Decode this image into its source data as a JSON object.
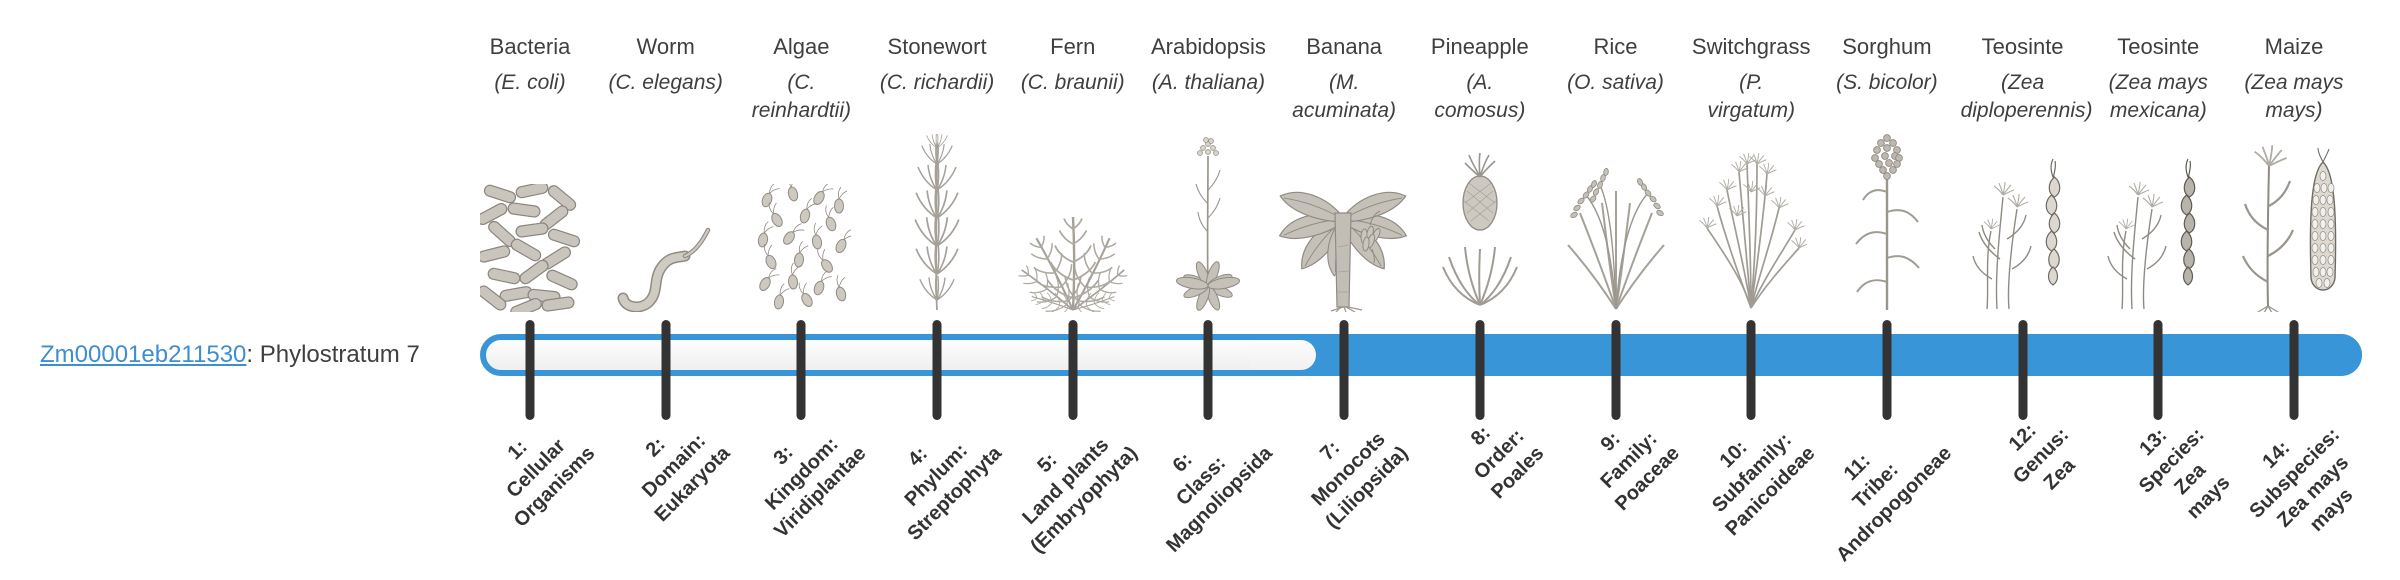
{
  "page": {
    "background": "#ffffff"
  },
  "gene": {
    "id": "Zm00001eb211530",
    "suffix": ": Phylostratum 7",
    "link_color": "#3e8ed0"
  },
  "bar": {
    "phylostratum": 7,
    "filled_from_stratum": 7,
    "total_strata": 14,
    "fill_color": "#3795d8",
    "outline_color": "#3795d8",
    "track_color": "#f7f7f7",
    "tick_color": "#333333"
  },
  "strata": [
    {
      "number": 1,
      "organism": "Bacteria",
      "scientific_name": "(E. coli)",
      "icon": "bacteria-icon",
      "stratum_label": "1:\nCellular\nOrganisms",
      "filled": false
    },
    {
      "number": 2,
      "organism": "Worm",
      "scientific_name": "(C. elegans)",
      "icon": "worm-icon",
      "stratum_label": "2:\nDomain:\nEukaryota",
      "filled": false
    },
    {
      "number": 3,
      "organism": "Algae",
      "scientific_name": "(C.\nreinhardtii)",
      "icon": "algae-icon",
      "stratum_label": "3:\nKingdom:\nViridiplantae",
      "filled": false
    },
    {
      "number": 4,
      "organism": "Stonewort",
      "scientific_name": "(C. richardii)",
      "icon": "stonewort-icon",
      "stratum_label": "4:\nPhylum:\nStreptophyta",
      "filled": false
    },
    {
      "number": 5,
      "organism": "Fern",
      "scientific_name": "(C. braunii)",
      "icon": "fern-icon",
      "stratum_label": "5:\nLand plants\n(Embryophyta)",
      "filled": false
    },
    {
      "number": 6,
      "organism": "Arabidopsis",
      "scientific_name": "(A. thaliana)",
      "icon": "arabidopsis-icon",
      "stratum_label": "6:\nClass:\nMagnoliopsida",
      "filled": false
    },
    {
      "number": 7,
      "organism": "Banana",
      "scientific_name": "(M.\nacuminata)",
      "icon": "banana-icon",
      "stratum_label": "7:\nMonocots\n(Liliopsida)",
      "filled": true
    },
    {
      "number": 8,
      "organism": "Pineapple",
      "scientific_name": "(A.\ncomosus)",
      "icon": "pineapple-icon",
      "stratum_label": "8:\nOrder:\nPoales",
      "filled": true
    },
    {
      "number": 9,
      "organism": "Rice",
      "scientific_name": "(O. sativa)",
      "icon": "rice-icon",
      "stratum_label": "9:\nFamily:\nPoaceae",
      "filled": true
    },
    {
      "number": 10,
      "organism": "Switchgrass",
      "scientific_name": "(P.\nvirgatum)",
      "icon": "switchgrass-icon",
      "stratum_label": "10:\nSubfamily:\nPanicoideae",
      "filled": true
    },
    {
      "number": 11,
      "organism": "Sorghum",
      "scientific_name": "(S. bicolor)",
      "icon": "sorghum-icon",
      "stratum_label": "11:\nTribe:\nAndropogoneae",
      "filled": true
    },
    {
      "number": 12,
      "organism": "Teosinte",
      "scientific_name": "(Zea\ndiploperennis)",
      "icon": "teosinte-icon",
      "stratum_label": "12:\nGenus:\nZea",
      "filled": true
    },
    {
      "number": 13,
      "organism": "Teosinte",
      "scientific_name": "(Zea mays\nmexicana)",
      "icon": "teosinte2-icon",
      "stratum_label": "13:\nSpecies:\nZea\nmays",
      "filled": true
    },
    {
      "number": 14,
      "organism": "Maize",
      "scientific_name": "(Zea mays\nmays)",
      "icon": "maize-icon",
      "stratum_label": "14:\nSubspecies:\nZea mays\nmays",
      "filled": true
    }
  ]
}
